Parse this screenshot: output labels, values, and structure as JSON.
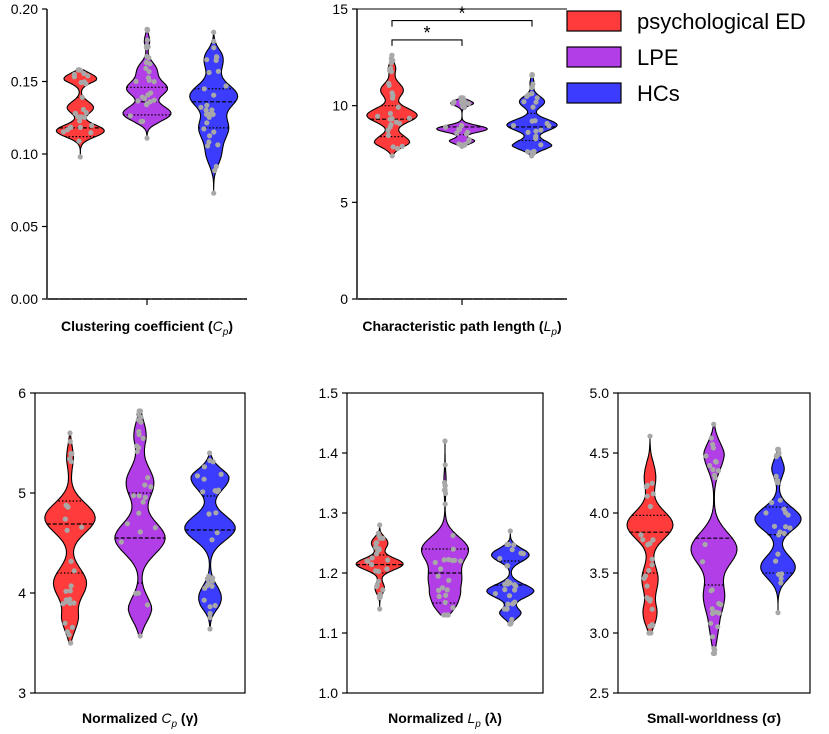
{
  "colors": {
    "psychological ED": "#ff3b3b",
    "LPE": "#b23ee8",
    "HCs": "#3c3cff",
    "dot": "#a8a8a8"
  },
  "legend": [
    {
      "label": "psychological ED",
      "color": "#ff3b3b"
    },
    {
      "label": "LPE",
      "color": "#b23ee8"
    },
    {
      "label": "HCs",
      "color": "#3c3cff"
    }
  ],
  "chart_data": [
    {
      "type": "violin",
      "xlabel": "Clustering coefficient (",
      "xlabel_sym": "C",
      "xlabel_sub": "p",
      "xlabel_end": ")",
      "ylim": [
        0,
        0.2
      ],
      "yticks": [
        0,
        0.05,
        0.1,
        0.15,
        0.2
      ],
      "ytick_labels": [
        "0.00",
        "0.05",
        "0.10",
        "0.15",
        "0.20"
      ],
      "series": [
        {
          "name": "psychological ED",
          "min": 0.098,
          "max": 0.158,
          "median": 0.118,
          "q1": 0.112,
          "q3": 0.139,
          "peaks": [
            [
              0.116,
              1.0
            ],
            [
              0.154,
              0.9
            ],
            [
              0.132,
              0.55
            ]
          ]
        },
        {
          "name": "LPE",
          "min": 0.111,
          "max": 0.186,
          "median": 0.136,
          "q1": 0.127,
          "q3": 0.146,
          "peaks": [
            [
              0.128,
              0.9
            ],
            [
              0.145,
              0.75
            ],
            [
              0.158,
              0.35
            ],
            [
              0.18,
              0.12
            ]
          ]
        },
        {
          "name": "HCs",
          "min": 0.073,
          "max": 0.184,
          "median": 0.136,
          "q1": 0.118,
          "q3": 0.145,
          "peaks": [
            [
              0.14,
              1.0
            ],
            [
              0.118,
              0.6
            ],
            [
              0.1,
              0.3
            ],
            [
              0.165,
              0.4
            ]
          ]
        }
      ],
      "annotations": []
    },
    {
      "type": "violin",
      "xlabel": "Characteristic path length (",
      "xlabel_sym": "L",
      "xlabel_sub": "p",
      "xlabel_end": ")",
      "ylim": [
        0,
        15
      ],
      "yticks": [
        0,
        5,
        10,
        15
      ],
      "ytick_labels": [
        "0",
        "5",
        "10",
        "15"
      ],
      "series": [
        {
          "name": "psychological ED",
          "min": 7.4,
          "max": 12.6,
          "median": 9.3,
          "q1": 8.4,
          "q3": 10.0,
          "peaks": [
            [
              9.5,
              1.0
            ],
            [
              8.1,
              0.7
            ],
            [
              10.8,
              0.45
            ],
            [
              12.0,
              0.15
            ]
          ]
        },
        {
          "name": "LPE",
          "min": 7.9,
          "max": 10.4,
          "median": 8.9,
          "q1": 8.5,
          "q3": 9.4,
          "peaks": [
            [
              8.8,
              1.0
            ],
            [
              10.2,
              0.55
            ],
            [
              8.1,
              0.6
            ]
          ]
        },
        {
          "name": "HCs",
          "min": 7.4,
          "max": 11.6,
          "median": 8.9,
          "q1": 8.2,
          "q3": 9.6,
          "peaks": [
            [
              9.0,
              1.0
            ],
            [
              7.9,
              0.8
            ],
            [
              10.2,
              0.5
            ],
            [
              11.3,
              0.1
            ]
          ]
        }
      ],
      "annotations": [
        {
          "label": "*",
          "from": 0,
          "to": 1,
          "y": 13.4
        },
        {
          "label": "*",
          "from": 0,
          "to": 2,
          "y": 14.4
        }
      ]
    },
    {
      "type": "violin",
      "xlabel": "Normalized ",
      "xlabel_sym": "C",
      "xlabel_sub": "p",
      "xlabel_end": " (γ)",
      "ylim": [
        3,
        6
      ],
      "yticks": [
        3,
        4,
        5,
        6
      ],
      "ytick_labels": [
        "3",
        "4",
        "5",
        "6"
      ],
      "series": [
        {
          "name": "psychological ED",
          "min": 3.5,
          "max": 5.6,
          "median": 4.69,
          "q1": 4.2,
          "q3": 4.92,
          "peaks": [
            [
              4.75,
              1.0
            ],
            [
              4.1,
              0.65
            ],
            [
              3.68,
              0.35
            ],
            [
              5.4,
              0.15
            ]
          ]
        },
        {
          "name": "LPE",
          "min": 3.57,
          "max": 5.82,
          "median": 4.55,
          "q1": 4.1,
          "q3": 5.0,
          "peaks": [
            [
              4.55,
              1.0
            ],
            [
              5.1,
              0.55
            ],
            [
              3.8,
              0.5
            ],
            [
              5.65,
              0.3
            ]
          ]
        },
        {
          "name": "HCs",
          "min": 3.64,
          "max": 5.4,
          "median": 4.63,
          "q1": 4.15,
          "q3": 4.97,
          "peaks": [
            [
              4.65,
              1.0
            ],
            [
              5.15,
              0.75
            ],
            [
              3.95,
              0.45
            ]
          ]
        }
      ],
      "annotations": []
    },
    {
      "type": "violin",
      "xlabel": "Normalized ",
      "xlabel_sym": "L",
      "xlabel_sub": "p",
      "xlabel_end": " (λ)",
      "ylim": [
        1.0,
        1.5
      ],
      "yticks": [
        1.0,
        1.1,
        1.2,
        1.3,
        1.4,
        1.5
      ],
      "ytick_labels": [
        "1.0",
        "1.1",
        "1.2",
        "1.3",
        "1.4",
        "1.5"
      ],
      "series": [
        {
          "name": "psychological ED",
          "min": 1.14,
          "max": 1.28,
          "median": 1.214,
          "q1": 1.2,
          "q3": 1.23,
          "peaks": [
            [
              1.215,
              1.0
            ],
            [
              1.25,
              0.35
            ],
            [
              1.175,
              0.2
            ]
          ]
        },
        {
          "name": "LPE",
          "min": 1.13,
          "max": 1.42,
          "median": 1.2,
          "q1": 1.15,
          "q3": 1.24,
          "peaks": [
            [
              1.24,
              1.0
            ],
            [
              1.14,
              0.85
            ],
            [
              1.19,
              0.65
            ],
            [
              1.35,
              0.05
            ]
          ]
        },
        {
          "name": "HCs",
          "min": 1.115,
          "max": 1.27,
          "median": 1.18,
          "q1": 1.15,
          "q3": 1.22,
          "peaks": [
            [
              1.17,
              1.0
            ],
            [
              1.23,
              0.8
            ],
            [
              1.13,
              0.5
            ]
          ]
        }
      ],
      "annotations": []
    },
    {
      "type": "violin",
      "xlabel": "Small-worldness (σ)",
      "xlabel_sym": "",
      "xlabel_sub": "",
      "xlabel_end": "",
      "ylim": [
        2.5,
        5.0
      ],
      "yticks": [
        2.5,
        3.0,
        3.5,
        4.0,
        4.5,
        5.0
      ],
      "ytick_labels": [
        "2.5",
        "3.0",
        "3.5",
        "4.0",
        "4.5",
        "5.0"
      ],
      "series": [
        {
          "name": "psychological ED",
          "min": 3.0,
          "max": 4.64,
          "median": 3.84,
          "q1": 3.5,
          "q3": 3.98,
          "peaks": [
            [
              3.9,
              1.0
            ],
            [
              3.45,
              0.35
            ],
            [
              3.1,
              0.4
            ],
            [
              4.3,
              0.25
            ]
          ]
        },
        {
          "name": "LPE",
          "min": 2.83,
          "max": 4.74,
          "median": 3.79,
          "q1": 3.4,
          "q3": 4.14,
          "peaks": [
            [
              3.7,
              1.0
            ],
            [
              4.5,
              0.45
            ],
            [
              3.3,
              0.45
            ],
            [
              2.95,
              0.2
            ]
          ]
        },
        {
          "name": "HCs",
          "min": 3.17,
          "max": 4.53,
          "median": 3.82,
          "q1": 3.5,
          "q3": 4.05,
          "peaks": [
            [
              3.95,
              1.0
            ],
            [
              3.55,
              0.75
            ],
            [
              4.4,
              0.3
            ]
          ]
        }
      ],
      "annotations": []
    }
  ]
}
